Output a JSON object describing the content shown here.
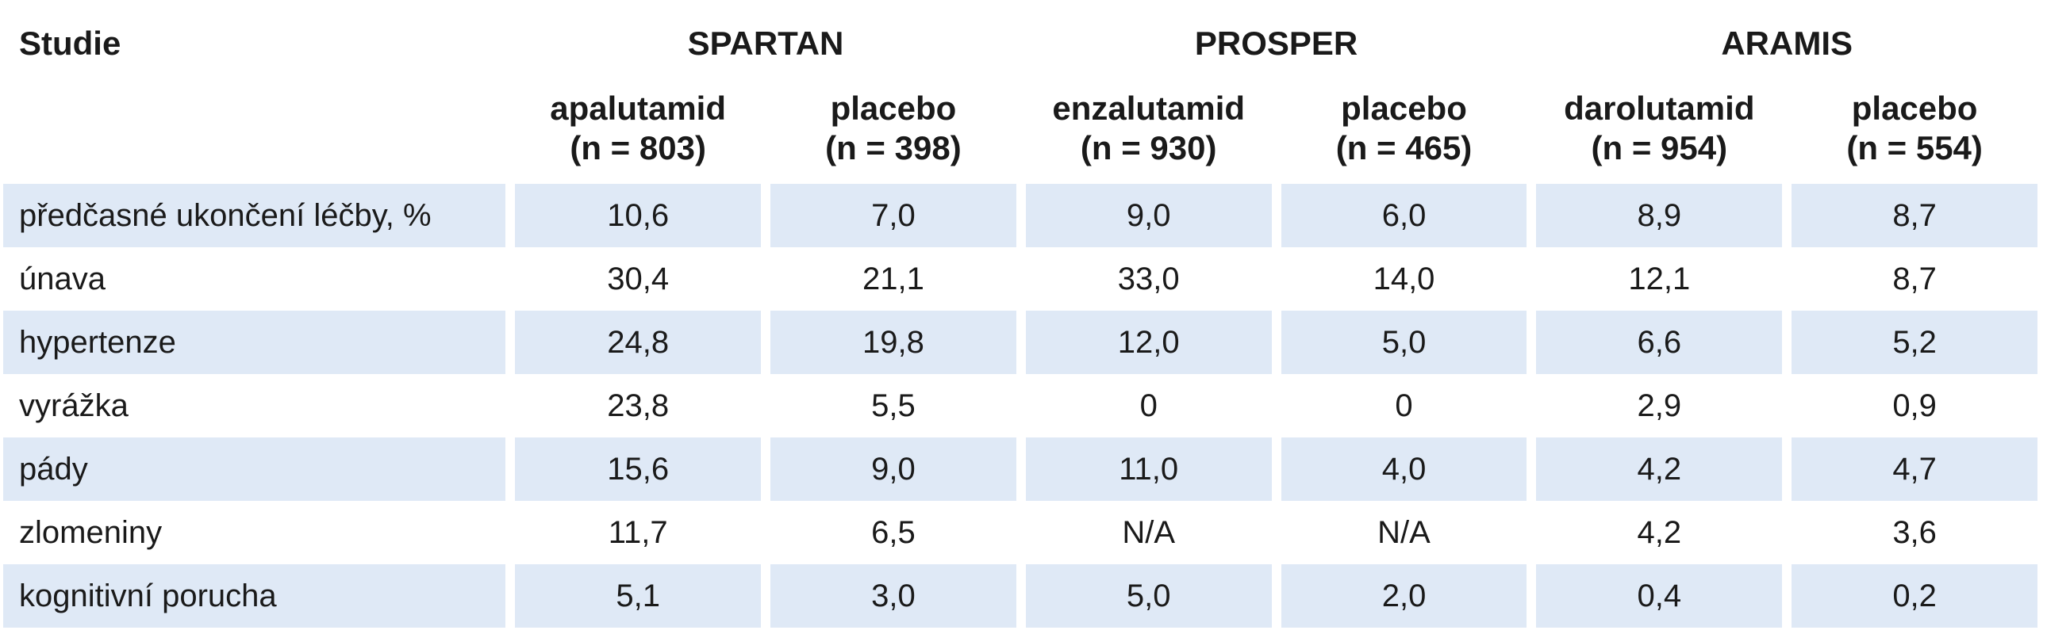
{
  "header": {
    "studie_label": "Studie",
    "trials": [
      "SPARTAN",
      "PROSPER",
      "ARAMIS"
    ],
    "arms": [
      {
        "name": "apalutamid",
        "n": "(n = 803)"
      },
      {
        "name": "placebo",
        "n": "(n = 398)"
      },
      {
        "name": "enzalutamid",
        "n": "(n = 930)"
      },
      {
        "name": "placebo",
        "n": "(n = 465)"
      },
      {
        "name": "darolutamid",
        "n": "(n = 954)"
      },
      {
        "name": "placebo",
        "n": "(n = 554)"
      }
    ]
  },
  "rows": [
    {
      "label": "předčasné ukončení léčby, %",
      "values": [
        "10,6",
        "7,0",
        "9,0",
        "6,0",
        "8,9",
        "8,7"
      ]
    },
    {
      "label": "únava",
      "values": [
        "30,4",
        "21,1",
        "33,0",
        "14,0",
        "12,1",
        "8,7"
      ]
    },
    {
      "label": "hypertenze",
      "values": [
        "24,8",
        "19,8",
        "12,0",
        "5,0",
        "6,6",
        "5,2"
      ]
    },
    {
      "label": "vyrážka",
      "values": [
        "23,8",
        "5,5",
        "0",
        "0",
        "2,9",
        "0,9"
      ]
    },
    {
      "label": "pády",
      "values": [
        "15,6",
        "9,0",
        "11,0",
        "4,0",
        "4,2",
        "4,7"
      ]
    },
    {
      "label": "zlomeniny",
      "values": [
        "11,7",
        "6,5",
        "N/A",
        "N/A",
        "4,2",
        "3,6"
      ]
    },
    {
      "label": "kognitivní porucha",
      "values": [
        "5,1",
        "3,0",
        "5,0",
        "2,0",
        "0,4",
        "0,2"
      ]
    }
  ],
  "colors": {
    "shaded_row": "#dfe9f6",
    "text": "#1a1a1a"
  }
}
